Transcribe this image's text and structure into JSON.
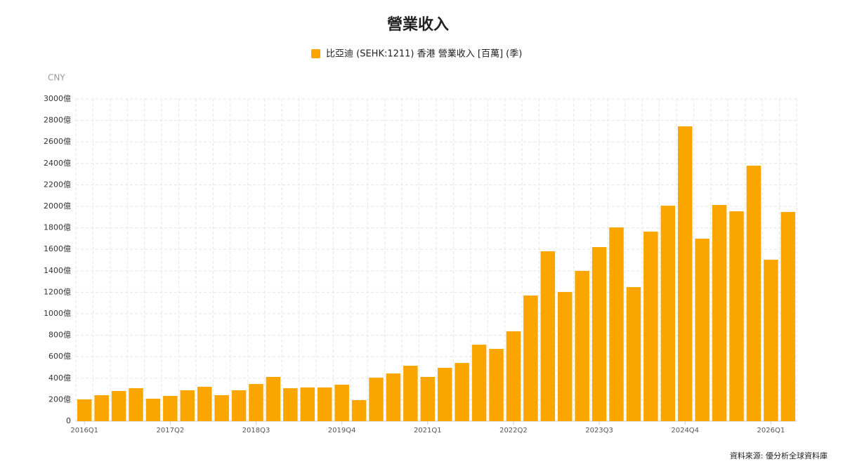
{
  "chart_data": {
    "type": "bar",
    "title": "營業收入",
    "y_axis_label": "CNY",
    "source": "資料來源: 優分析全球資料庫",
    "categories": [
      "2016Q1",
      null,
      null,
      null,
      null,
      "2017Q2",
      null,
      null,
      null,
      null,
      "2018Q3",
      null,
      null,
      null,
      null,
      "2019Q4",
      null,
      null,
      null,
      null,
      "2021Q1",
      null,
      null,
      null,
      null,
      "2022Q2",
      null,
      null,
      null,
      null,
      "2023Q3",
      null,
      null,
      null,
      null,
      "2024Q4",
      null,
      null,
      null,
      null,
      "2026Q1",
      null
    ],
    "series": [
      {
        "name": "比亞迪 (SEHK:1211) 香港 營業收入 [百萬] (季)",
        "color": "#fba600",
        "values": [
          203,
          242,
          281,
          307,
          209,
          235,
          288,
          320,
          242,
          288,
          346,
          412,
          307,
          314,
          314,
          340,
          196,
          405,
          444,
          516,
          412,
          497,
          542,
          712,
          673,
          837,
          1170,
          1582,
          1203,
          1399,
          1621,
          1804,
          1248,
          1765,
          2007,
          2745,
          1699,
          2013,
          1954,
          2379,
          1503,
          1948
        ]
      }
    ],
    "ylim": [
      0,
      3000
    ],
    "yticks": [
      0,
      {
        "value": 200,
        "label": "200億"
      },
      {
        "value": 400,
        "label": "400億"
      },
      {
        "value": 600,
        "label": "600億"
      },
      {
        "value": 800,
        "label": "800億"
      },
      {
        "value": 1000,
        "label": "1000億"
      },
      {
        "value": 1200,
        "label": "1200億"
      },
      {
        "value": 1400,
        "label": "1400億"
      },
      {
        "value": 1600,
        "label": "1600億"
      },
      {
        "value": 1800,
        "label": "1800億"
      },
      {
        "value": 2000,
        "label": "2000億"
      },
      {
        "value": 2200,
        "label": "2200億"
      },
      {
        "value": 2400,
        "label": "2400億"
      },
      {
        "value": 2600,
        "label": "2600億"
      },
      {
        "value": 2800,
        "label": "2800億"
      },
      {
        "value": 3000,
        "label": "3000億"
      }
    ],
    "grid": true
  }
}
